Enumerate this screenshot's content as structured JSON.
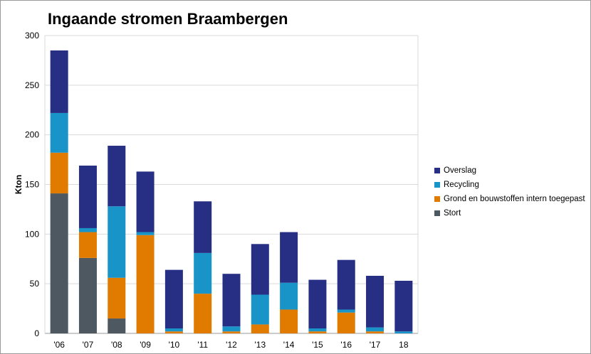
{
  "chart_data": {
    "type": "bar",
    "stacked": true,
    "title": "Ingaande stromen Braambergen",
    "xlabel": "",
    "ylabel": "Kton",
    "ylim": [
      0,
      300
    ],
    "yticks": [
      0,
      50,
      100,
      150,
      200,
      250,
      300
    ],
    "grid": true,
    "legend_position": "right",
    "categories": [
      "'06",
      "'07",
      "'08",
      "'09",
      "'10",
      "'11",
      "'12",
      "'13",
      "'14",
      "'15",
      "'16",
      "'17",
      "18"
    ],
    "series": [
      {
        "name": "Stort",
        "color": "#4e5860",
        "values": [
          141,
          76,
          15,
          0,
          0,
          0,
          0,
          0,
          0,
          0,
          0,
          0,
          0
        ]
      },
      {
        "name": "Grond en bouwstoffen intern toegepast",
        "color": "#e07b00",
        "values": [
          41,
          26,
          41,
          99,
          2,
          40,
          2,
          9,
          24,
          2,
          21,
          2,
          0
        ]
      },
      {
        "name": "Recycling",
        "color": "#1994c8",
        "values": [
          40,
          4,
          72,
          3,
          3,
          41,
          5,
          30,
          27,
          3,
          3,
          4,
          2
        ]
      },
      {
        "name": "Overslag",
        "color": "#262f84",
        "values": [
          63,
          63,
          61,
          61,
          59,
          52,
          53,
          51,
          51,
          49,
          50,
          52,
          51
        ]
      }
    ],
    "legend_order": [
      "Overslag",
      "Recycling",
      "Grond en bouwstoffen intern toegepast",
      "Stort"
    ]
  }
}
